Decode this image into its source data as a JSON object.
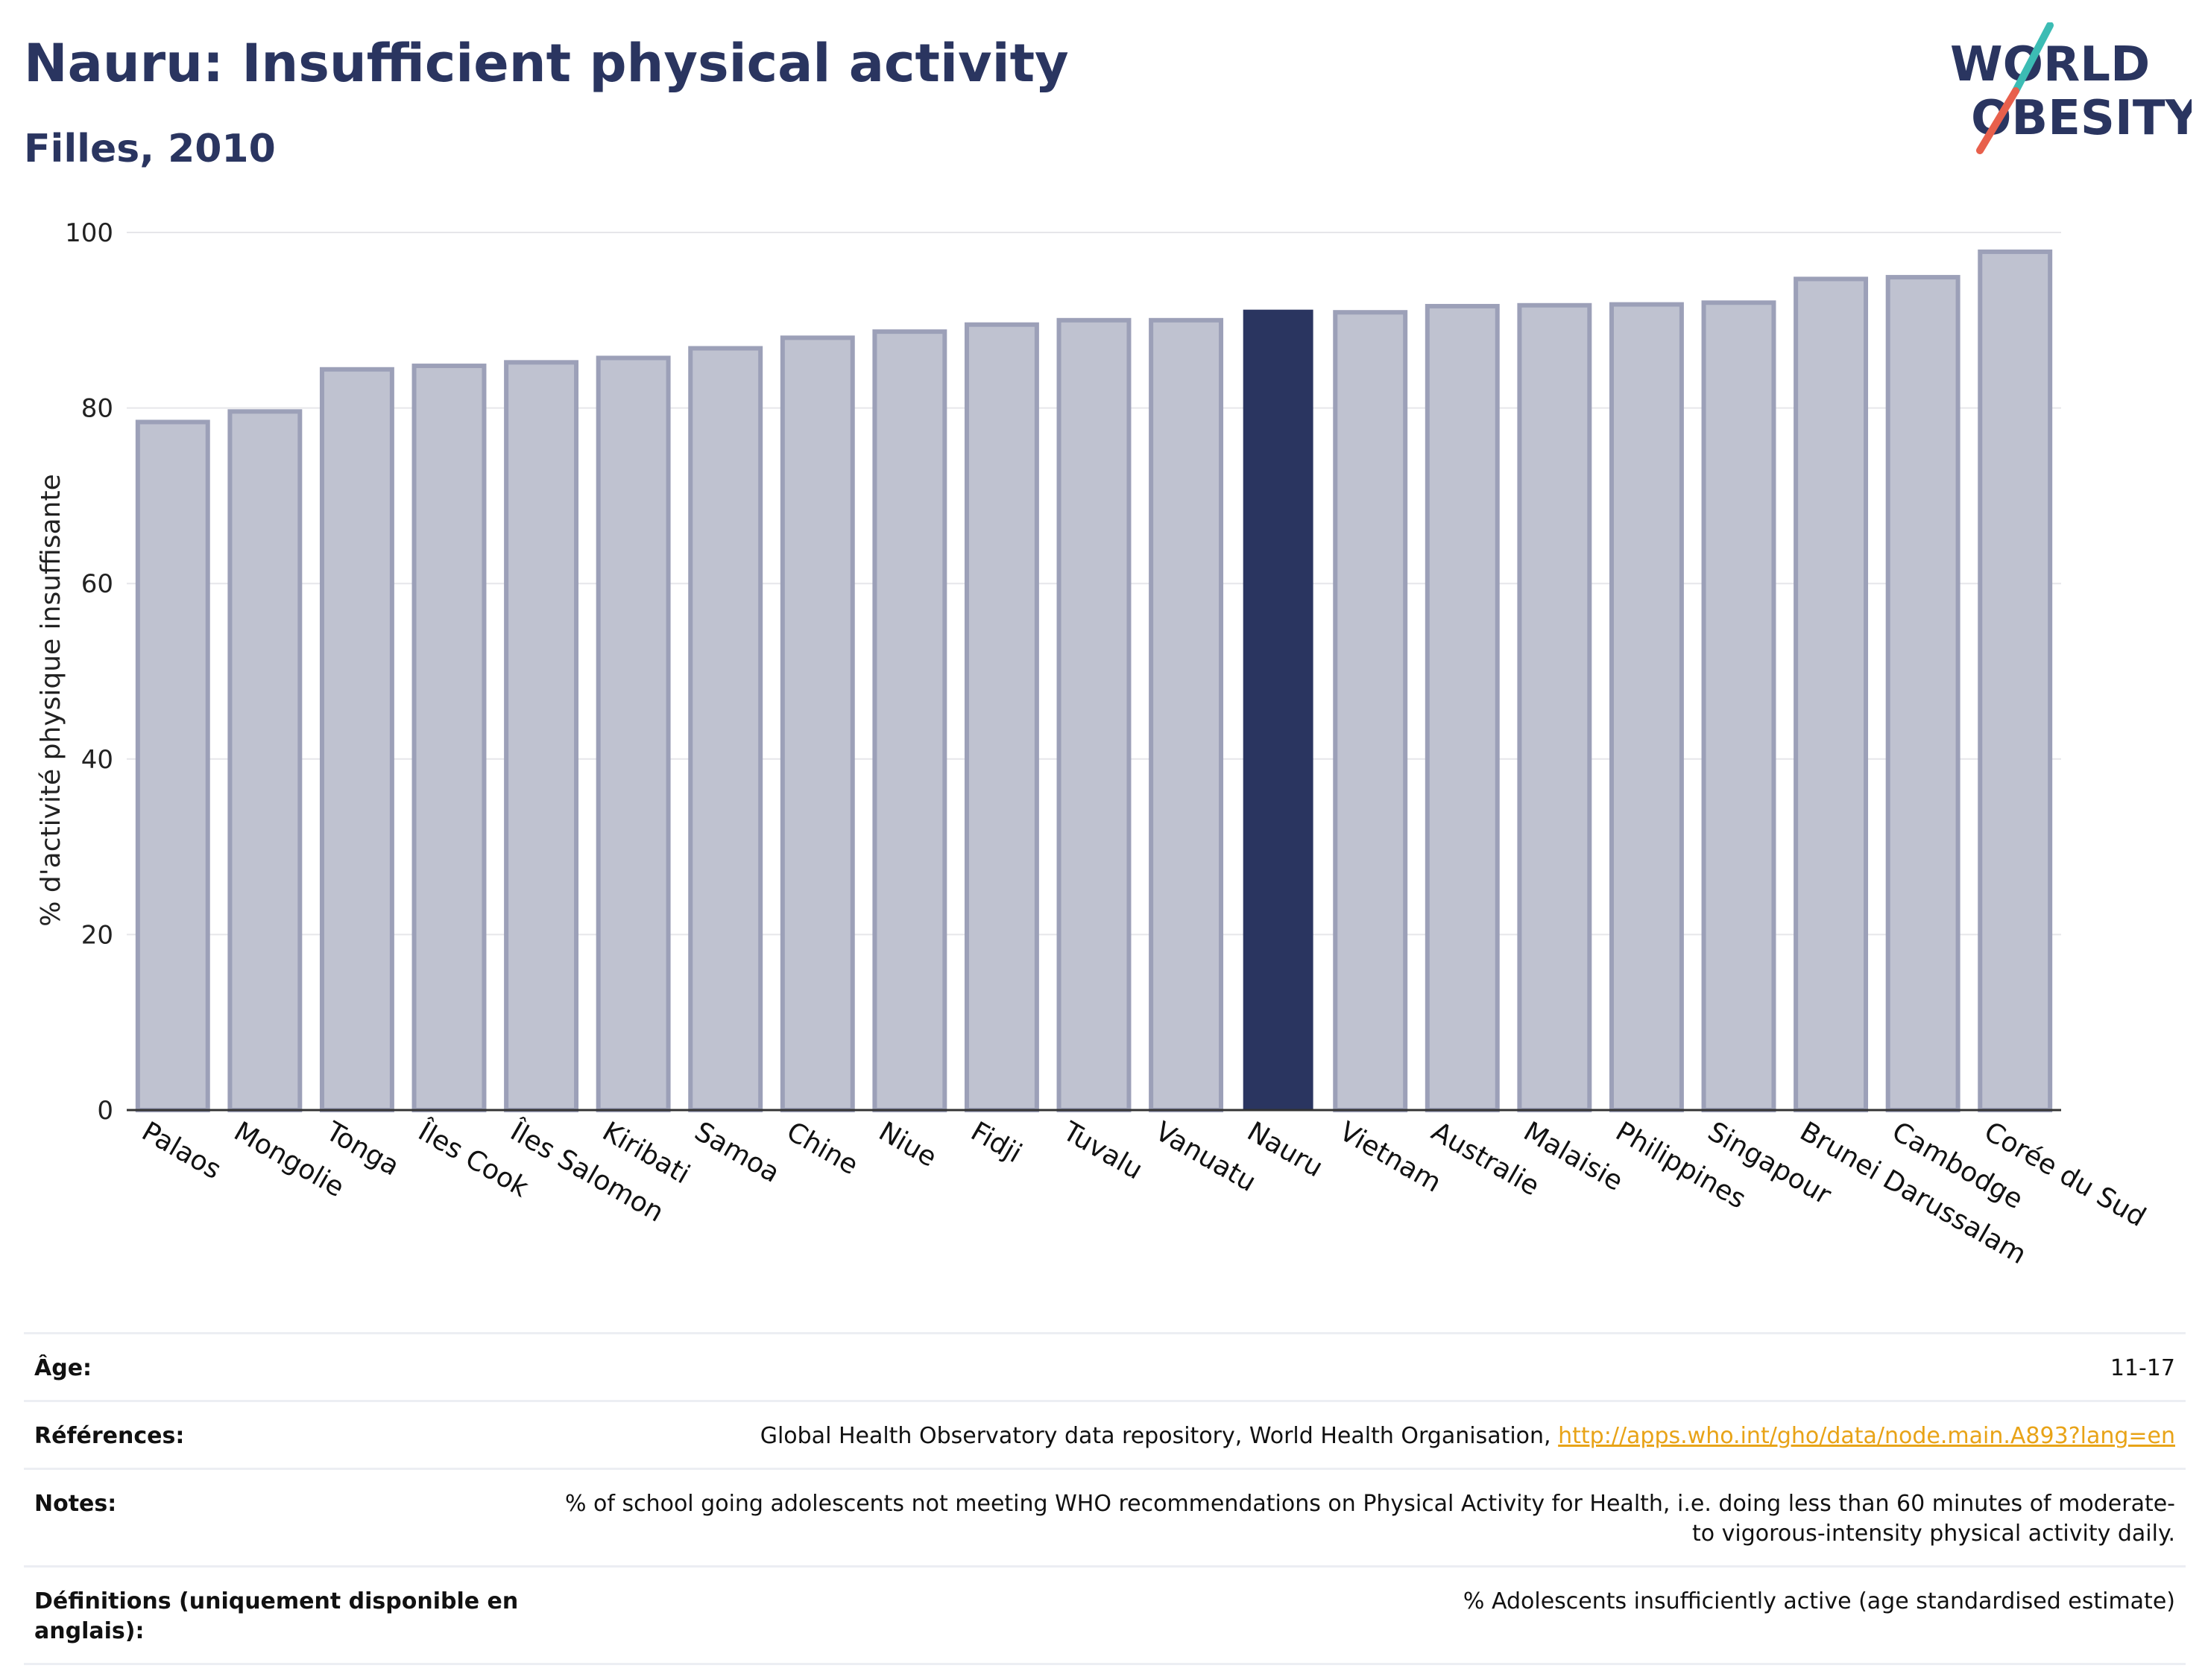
{
  "header": {
    "title": "Nauru: Insufficient physical activity",
    "subtitle": "Filles, 2010"
  },
  "logo": {
    "line1": "WORLD",
    "line2": "OBESITY"
  },
  "chart_data": {
    "type": "bar",
    "ylabel": "% d'activité physique insuffisante",
    "ylim": [
      0,
      100
    ],
    "yticks": [
      0,
      20,
      40,
      60,
      80,
      100
    ],
    "grid": true,
    "categories": [
      "Palaos",
      "Mongolie",
      "Tonga",
      "Îles Cook",
      "Îles Salomon",
      "Kiribati",
      "Samoa",
      "Chine",
      "Niue",
      "Fidji",
      "Tuvalu",
      "Vanuatu",
      "Nauru",
      "Vietnam",
      "Australie",
      "Malaisie",
      "Philippines",
      "Singapour",
      "Brunei Darussalam",
      "Cambodge",
      "Corée du Sud"
    ],
    "values": [
      78.4,
      79.6,
      84.4,
      84.8,
      85.2,
      85.7,
      86.8,
      88.0,
      88.7,
      89.5,
      90.0,
      90.0,
      91.2,
      90.9,
      91.6,
      91.7,
      91.8,
      92.0,
      94.7,
      94.9,
      97.8
    ],
    "highlight": "Nauru",
    "colors": {
      "bar": "#bfc2d0",
      "bar_border": "#9ca0b8",
      "highlight": "#2a3560",
      "grid": "#e6e6ea",
      "axis": "#333333"
    }
  },
  "notes": {
    "age": {
      "label": "Âge:",
      "value": "11-17"
    },
    "references": {
      "label": "Références:",
      "value": "Global Health Observatory data repository, World Health Organisation,",
      "link": "http://apps.who.int/gho/data/node.main.A893?lang=en"
    },
    "notes": {
      "label": "Notes:",
      "value": "% of school going adolescents not meeting WHO recommendations on Physical Activity for Health, i.e. doing less than 60 minutes of moderate- to vigorous-intensity physical activity daily."
    },
    "definitions": {
      "label": "Définitions (uniquement disponible en anglais):",
      "value": "% Adolescents insufficiently active (age standardised estimate)"
    }
  }
}
